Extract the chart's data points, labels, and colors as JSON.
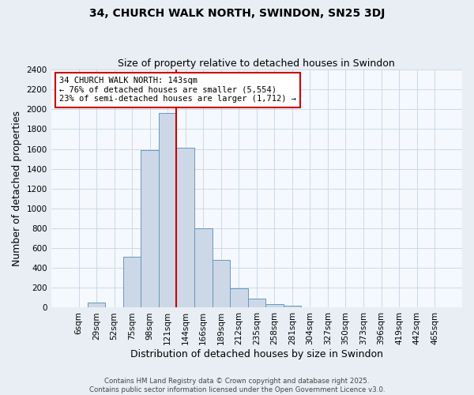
{
  "title": "34, CHURCH WALK NORTH, SWINDON, SN25 3DJ",
  "subtitle": "Size of property relative to detached houses in Swindon",
  "xlabel": "Distribution of detached houses by size in Swindon",
  "ylabel": "Number of detached properties",
  "categories": [
    "6sqm",
    "29sqm",
    "52sqm",
    "75sqm",
    "98sqm",
    "121sqm",
    "144sqm",
    "166sqm",
    "189sqm",
    "212sqm",
    "235sqm",
    "258sqm",
    "281sqm",
    "304sqm",
    "327sqm",
    "350sqm",
    "373sqm",
    "396sqm",
    "419sqm",
    "442sqm",
    "465sqm"
  ],
  "values": [
    0,
    50,
    0,
    510,
    1590,
    1960,
    1610,
    800,
    480,
    195,
    90,
    35,
    20,
    0,
    0,
    0,
    0,
    0,
    0,
    0,
    0
  ],
  "bar_color": "#ccd8e8",
  "bar_edge_color": "#6699bb",
  "marker_index": 6,
  "marker_color": "#cc0000",
  "annotation_text": "34 CHURCH WALK NORTH: 143sqm\n← 76% of detached houses are smaller (5,554)\n23% of semi-detached houses are larger (1,712) →",
  "annotation_box_color": "#ffffff",
  "annotation_box_edge": "#cc0000",
  "ylim": [
    0,
    2400
  ],
  "yticks": [
    0,
    200,
    400,
    600,
    800,
    1000,
    1200,
    1400,
    1600,
    1800,
    2000,
    2200,
    2400
  ],
  "footer_line1": "Contains HM Land Registry data © Crown copyright and database right 2025.",
  "footer_line2": "Contains public sector information licensed under the Open Government Licence v3.0.",
  "title_fontsize": 10,
  "subtitle_fontsize": 9,
  "axis_label_fontsize": 9,
  "tick_fontsize": 7.5,
  "bg_color": "#e8eef4",
  "plot_bg_color": "#f5f8fc",
  "grid_color": "#c5d5e5"
}
